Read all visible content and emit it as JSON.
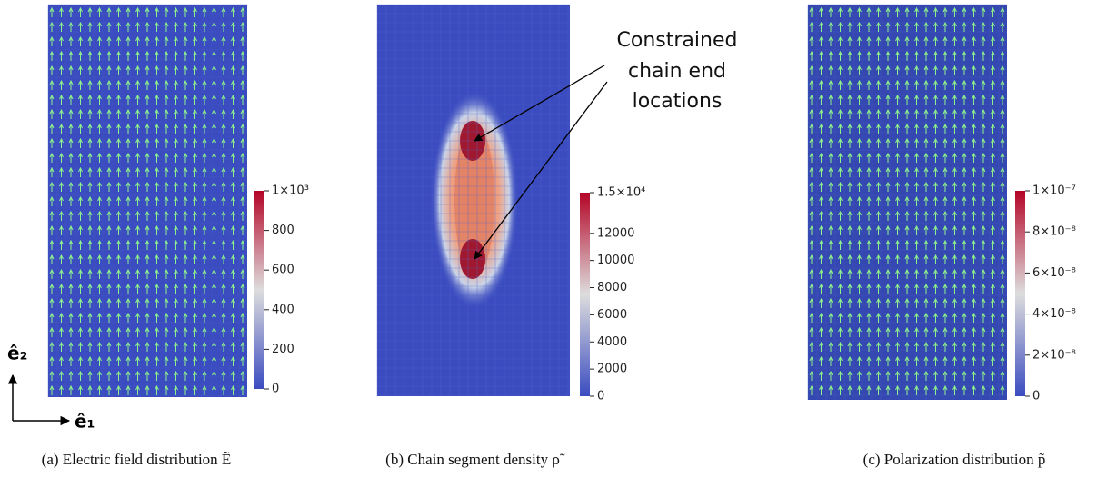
{
  "panels": [
    {
      "caption": "(a) Electric field distribution Ẽ",
      "colorbar": {
        "lim": [
          0,
          1000
        ],
        "ticks": [
          {
            "value": 1000,
            "label": "1×10³"
          },
          800,
          600,
          400,
          200,
          0
        ]
      }
    },
    {
      "caption": "(b) Chain segment density ρ̃",
      "colorbar": {
        "lim": [
          0,
          15000
        ],
        "ticks": [
          {
            "value": 15000,
            "label": "1.5×10⁴"
          },
          12000,
          10000,
          8000,
          6000,
          4000,
          2000,
          0
        ]
      }
    },
    {
      "caption": "(c) Polarization distribution p̃",
      "colorbar": {
        "lim": [
          0,
          1e-07
        ],
        "ticks": [
          {
            "value": 1e-07,
            "label": "1×10⁻⁷"
          },
          {
            "value": 8e-08,
            "label": "8×10⁻⁸"
          },
          {
            "value": 6e-08,
            "label": "6×10⁻⁸"
          },
          {
            "value": 4e-08,
            "label": "4×10⁻⁸"
          },
          {
            "value": 2e-08,
            "label": "2×10⁻⁸"
          },
          0
        ]
      }
    }
  ],
  "annotation": {
    "lines": [
      "Constrained",
      "chain end",
      "locations"
    ]
  },
  "axes": {
    "e1": "ê₁",
    "e2": "ê₂"
  }
}
